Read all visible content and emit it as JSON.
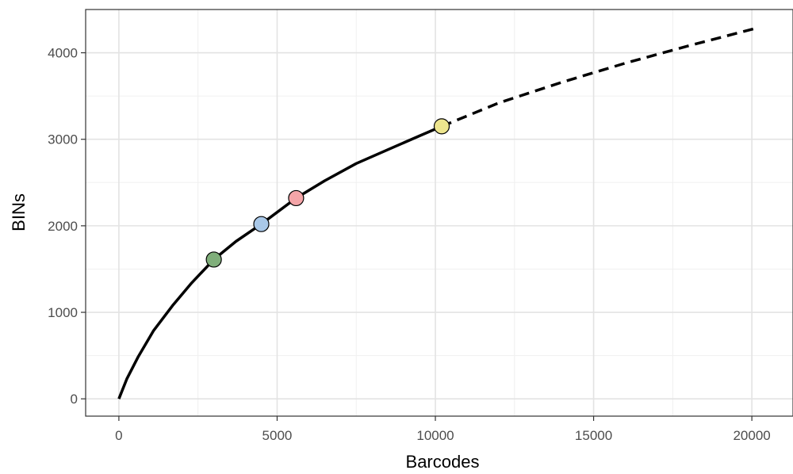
{
  "chart_data": {
    "type": "line",
    "title": "",
    "xlabel": "Barcodes",
    "ylabel": "BINs",
    "xlim": [
      -1050,
      21300
    ],
    "ylim": [
      -200,
      4500
    ],
    "x_ticks": [
      0,
      5000,
      10000,
      15000,
      20000
    ],
    "y_ticks": [
      0,
      1000,
      2000,
      3000,
      4000
    ],
    "x_tick_labels": [
      "0",
      "5000",
      "10000",
      "15000",
      "20000"
    ],
    "y_tick_labels": [
      "0",
      "1000",
      "2000",
      "3000",
      "4000"
    ],
    "grid": true,
    "series": [
      {
        "style": "solid",
        "color": "#000000",
        "x": [
          0,
          250,
          600,
          1100,
          1700,
          2300,
          3000,
          3700,
          4500,
          5600,
          6500,
          7500,
          8500,
          9500,
          10200
        ],
        "y": [
          0,
          230,
          480,
          790,
          1080,
          1340,
          1610,
          1820,
          2020,
          2320,
          2520,
          2720,
          2880,
          3040,
          3150
        ]
      },
      {
        "style": "dashed",
        "color": "#000000",
        "x": [
          10200,
          12000,
          14000,
          16000,
          18000,
          20200
        ],
        "y": [
          3150,
          3420,
          3660,
          3880,
          4080,
          4290
        ]
      }
    ],
    "points": [
      {
        "x": 3000,
        "y": 1610,
        "color": "#7fae7a"
      },
      {
        "x": 4500,
        "y": 2020,
        "color": "#a9c8e8"
      },
      {
        "x": 5600,
        "y": 2320,
        "color": "#f4a5a8"
      },
      {
        "x": 10200,
        "y": 3150,
        "color": "#ede58e"
      }
    ]
  }
}
